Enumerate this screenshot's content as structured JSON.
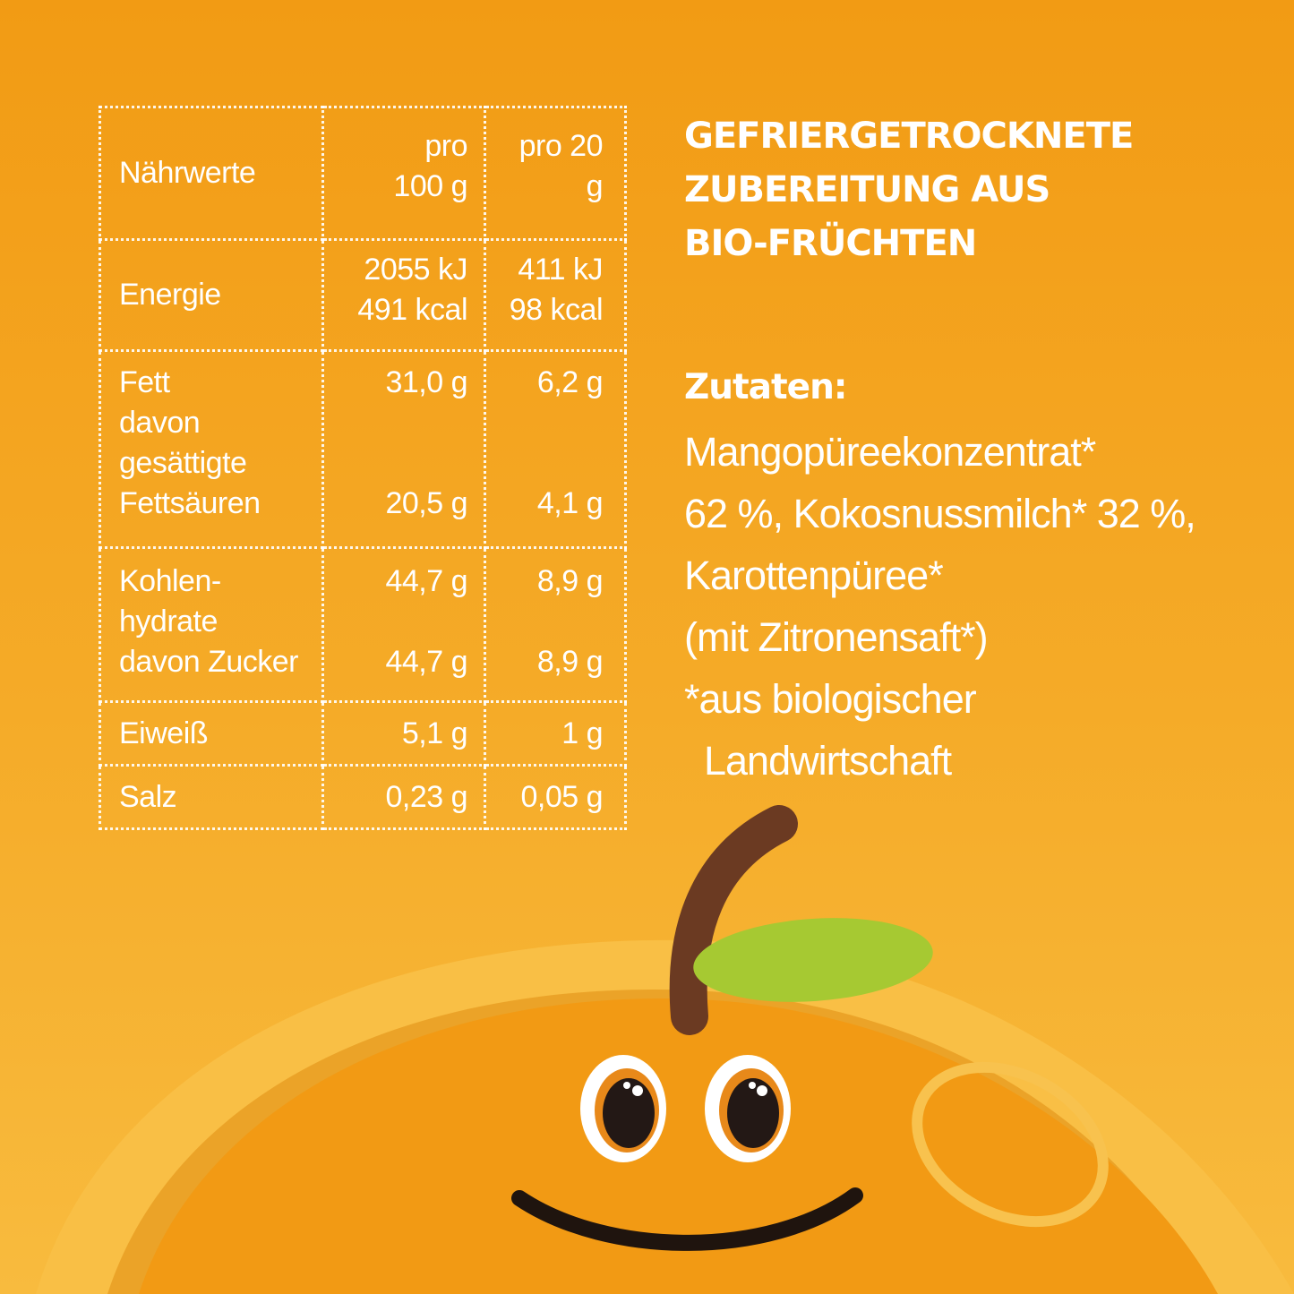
{
  "nutrition_table": {
    "header": {
      "label": "Nährwerte",
      "col_100g": [
        "pro",
        "100 g"
      ],
      "col_20g": [
        "pro 20",
        "g"
      ]
    },
    "rows": {
      "energy": {
        "label": "Energie",
        "per_100g": [
          "2055 kJ",
          "491 kcal"
        ],
        "per_20g": [
          "411 kJ",
          "98 kcal"
        ]
      },
      "fat": {
        "label": [
          "Fett",
          "davon",
          "gesättigte",
          "Fettsäuren"
        ],
        "per_100g": [
          "31,0 g",
          "20,5 g"
        ],
        "per_20g": [
          "6,2 g",
          "4,1 g"
        ]
      },
      "carbs": {
        "label": [
          "Kohlen-",
          "hydrate",
          "davon Zucker"
        ],
        "per_100g": [
          "44,7 g",
          "44,7 g"
        ],
        "per_20g": [
          "8,9 g",
          "8,9 g"
        ]
      },
      "protein": {
        "label": "Eiweiß",
        "per_100g": "5,1 g",
        "per_20g": "1 g"
      },
      "salt": {
        "label": "Salz",
        "per_100g": "0,23 g",
        "per_20g": "0,05 g"
      }
    }
  },
  "product": {
    "headline": [
      "GEFRIERGETROCKNETE",
      "ZUBEREITUNG AUS",
      "BIO-FRÜCHTEN"
    ],
    "ingredients_title": "Zutaten:",
    "ingredients_lines": [
      "Mangopüreekonzentrat*",
      "62 %, Kokosnussmilch* 32 %,",
      "Karottenpüree*",
      "(mit Zitronensaft*)",
      "*aus biologischer",
      "Landwirtschaft"
    ]
  },
  "mascot": {
    "icon": "mango-character-icon",
    "colors": {
      "body": "#f29a14",
      "stem": "#6b3a22",
      "leaf": "#a6c932",
      "eye_ring": "#ffffff",
      "outline": "#231815"
    }
  },
  "colors": {
    "background_top": "#f29b14",
    "background_bottom": "#f8bb3e",
    "text": "#ffffff"
  }
}
